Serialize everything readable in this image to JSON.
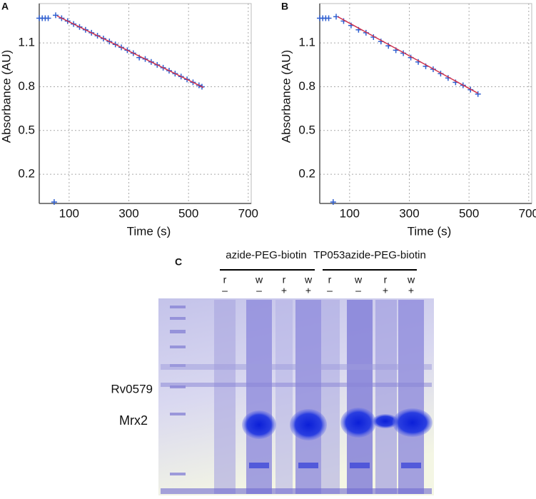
{
  "chart_data": [
    {
      "type": "line",
      "panel_label": "A",
      "xlabel": "Time (s)",
      "ylabel": "Absorbance  (AU)",
      "xlim": [
        0,
        710
      ],
      "ylim": [
        0,
        1.37
      ],
      "xticks": [
        100,
        300,
        500,
        700
      ],
      "yticks": [
        0.2,
        0.5,
        0.8,
        1.1
      ],
      "grid": true,
      "series": [
        {
          "color": "#2f5fd0",
          "marker": "plus",
          "x": [
            0,
            10,
            20,
            30,
            50,
            55,
            75,
            95,
            115,
            135,
            155,
            175,
            195,
            215,
            235,
            255,
            275,
            295,
            315,
            335,
            355,
            375,
            395,
            415,
            435,
            455,
            475,
            495,
            515,
            535,
            545
          ],
          "values": [
            1.27,
            1.27,
            1.27,
            1.27,
            0.01,
            1.29,
            1.27,
            1.25,
            1.23,
            1.21,
            1.19,
            1.17,
            1.15,
            1.13,
            1.11,
            1.09,
            1.07,
            1.05,
            1.03,
            1.0,
            0.99,
            0.97,
            0.95,
            0.93,
            0.91,
            0.89,
            0.87,
            0.85,
            0.83,
            0.81,
            0.8
          ]
        },
        {
          "color": "#d0304a",
          "marker": "none",
          "x": [
            60,
            550
          ],
          "values": [
            1.285,
            0.795
          ]
        }
      ]
    },
    {
      "type": "line",
      "panel_label": "B",
      "xlabel": "Time (s)",
      "ylabel": "Absorbance  (AU)",
      "xlim": [
        0,
        710
      ],
      "ylim": [
        0,
        1.37
      ],
      "xticks": [
        100,
        300,
        500,
        700
      ],
      "yticks": [
        0.2,
        0.5,
        0.8,
        1.1
      ],
      "grid": true,
      "series": [
        {
          "color": "#2f5fd0",
          "marker": "plus",
          "x": [
            0,
            10,
            20,
            30,
            45,
            55,
            80,
            105,
            130,
            155,
            180,
            205,
            230,
            255,
            280,
            305,
            330,
            355,
            380,
            405,
            430,
            455,
            480,
            505,
            530
          ],
          "values": [
            1.27,
            1.27,
            1.27,
            1.27,
            0.01,
            1.28,
            1.25,
            1.22,
            1.19,
            1.17,
            1.14,
            1.11,
            1.08,
            1.05,
            1.03,
            1.0,
            0.97,
            0.94,
            0.92,
            0.89,
            0.86,
            0.83,
            0.81,
            0.78,
            0.75
          ]
        },
        {
          "color": "#d0304a",
          "marker": "none",
          "x": [
            60,
            530
          ],
          "values": [
            1.28,
            0.755
          ]
        }
      ]
    }
  ],
  "gel": {
    "panel_label": "C",
    "groups": [
      "azide-PEG-biotin",
      "TP053azide-PEG-biotin"
    ],
    "lanes": [
      {
        "sample": "r",
        "treatment": "–"
      },
      {
        "sample": "w",
        "treatment": "–"
      },
      {
        "sample": "r",
        "treatment": "+"
      },
      {
        "sample": "w",
        "treatment": "+"
      },
      {
        "sample": "r",
        "treatment": "–"
      },
      {
        "sample": "w",
        "treatment": "–"
      },
      {
        "sample": "r",
        "treatment": "+"
      },
      {
        "sample": "w",
        "treatment": "+"
      }
    ],
    "bands": [
      "Rv0579",
      "Mrx2"
    ]
  }
}
